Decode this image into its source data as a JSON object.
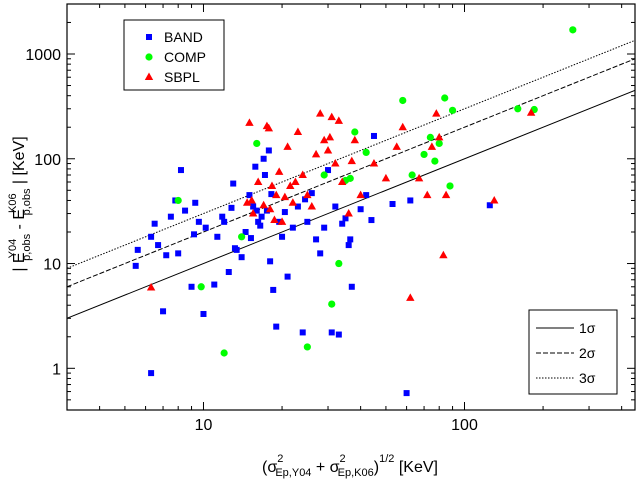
{
  "chart_data": {
    "type": "scatter",
    "xscale": "log",
    "yscale": "log",
    "xlim": [
      3,
      450
    ],
    "ylim": [
      0.4,
      3000
    ],
    "xticks": [
      10,
      100
    ],
    "yticks": [
      1,
      10,
      100,
      1000
    ],
    "xtick_labels": [
      "10",
      "100"
    ],
    "ytick_labels": [
      "1",
      "10",
      "100",
      "1000"
    ],
    "xlabel": {
      "pre": "(σ",
      "sup1": "2",
      "sub1": "Ep,Y04",
      "mid": " + σ",
      "sup2": "2",
      "sub2": "Ep,K06",
      "post": ")",
      "sup3": "1/2",
      "unit": " [KeV]"
    },
    "ylabel": {
      "open": "| E",
      "sup1": "Y04",
      "sub1": "p,obs",
      "mid": " - E",
      "sup2": "K06",
      "sub2": "p,obs",
      "close": " | [KeV]"
    },
    "legend_markers": {
      "position": "top-left",
      "entries": [
        {
          "label": "BAND",
          "marker": "square",
          "color": "#0000ff"
        },
        {
          "label": "COMP",
          "marker": "circle",
          "color": "#00ff00"
        },
        {
          "label": "SBPL",
          "marker": "triangle",
          "color": "#ff0000"
        }
      ]
    },
    "legend_lines": {
      "position": "bottom-right",
      "entries": [
        {
          "label": "1σ",
          "k": 1,
          "dash": "solid"
        },
        {
          "label": "2σ",
          "k": 2,
          "dash": "dashed"
        },
        {
          "label": "3σ",
          "k": 3,
          "dash": "dotted"
        }
      ]
    },
    "reference_lines": [
      {
        "name": "1σ",
        "slope": 1,
        "coefficient": 1
      },
      {
        "name": "2σ",
        "slope": 1,
        "coefficient": 2
      },
      {
        "name": "3σ",
        "slope": 1,
        "coefficient": 3
      }
    ],
    "series": [
      {
        "name": "BAND",
        "marker": "square",
        "color": "#0000ff",
        "points": [
          [
            5.5,
            9.5
          ],
          [
            5.6,
            13.5
          ],
          [
            6.3,
            18
          ],
          [
            6.3,
            0.9
          ],
          [
            6.5,
            24
          ],
          [
            6.7,
            15
          ],
          [
            7,
            3.5
          ],
          [
            7.2,
            12
          ],
          [
            7.5,
            28
          ],
          [
            7.8,
            40
          ],
          [
            8.0,
            12.5
          ],
          [
            8.2,
            78
          ],
          [
            8.5,
            32
          ],
          [
            9.0,
            6
          ],
          [
            9.2,
            19
          ],
          [
            9.3,
            38
          ],
          [
            9.6,
            25
          ],
          [
            10,
            3.3
          ],
          [
            10.2,
            22
          ],
          [
            11,
            6.3
          ],
          [
            11.3,
            18
          ],
          [
            11.8,
            28
          ],
          [
            12,
            25
          ],
          [
            12.5,
            8.3
          ],
          [
            12.8,
            34
          ],
          [
            13,
            58
          ],
          [
            13.2,
            14
          ],
          [
            13.4,
            13.5
          ],
          [
            14,
            11.5
          ],
          [
            14.5,
            20
          ],
          [
            15,
            45
          ],
          [
            15.2,
            17.5
          ],
          [
            15.5,
            35
          ],
          [
            15.8,
            84
          ],
          [
            16,
            32
          ],
          [
            16.2,
            25
          ],
          [
            16.5,
            23
          ],
          [
            16.7,
            28
          ],
          [
            17,
            100
          ],
          [
            17.2,
            70
          ],
          [
            17.5,
            32
          ],
          [
            17.8,
            120
          ],
          [
            18,
            10.5
          ],
          [
            18.2,
            46
          ],
          [
            18.5,
            5.6
          ],
          [
            19,
            2.5
          ],
          [
            19.5,
            25
          ],
          [
            20,
            18
          ],
          [
            20.5,
            31
          ],
          [
            21,
            7.5
          ],
          [
            22,
            22
          ],
          [
            23,
            35
          ],
          [
            24,
            2.2
          ],
          [
            24.5,
            41
          ],
          [
            25,
            25
          ],
          [
            26,
            47
          ],
          [
            27,
            17
          ],
          [
            28,
            12.5
          ],
          [
            29,
            22
          ],
          [
            30,
            78
          ],
          [
            31,
            2.2
          ],
          [
            32,
            35
          ],
          [
            33,
            2.1
          ],
          [
            34,
            24
          ],
          [
            35,
            27
          ],
          [
            36,
            15
          ],
          [
            36.5,
            17
          ],
          [
            37,
            6
          ],
          [
            40,
            33
          ],
          [
            42,
            45
          ],
          [
            44,
            26
          ],
          [
            45,
            165
          ],
          [
            53,
            37
          ],
          [
            60,
            0.58
          ],
          [
            62,
            40
          ],
          [
            125,
            36
          ]
        ]
      },
      {
        "name": "COMP",
        "marker": "circle",
        "color": "#00ff00",
        "points": [
          [
            8.0,
            40
          ],
          [
            9.8,
            6
          ],
          [
            12,
            1.4
          ],
          [
            14,
            18
          ],
          [
            16,
            140
          ],
          [
            25,
            1.6
          ],
          [
            29,
            70
          ],
          [
            31,
            4.1
          ],
          [
            33,
            10
          ],
          [
            35,
            62
          ],
          [
            36.5,
            65
          ],
          [
            38,
            180
          ],
          [
            42,
            115
          ],
          [
            58,
            360
          ],
          [
            63,
            70
          ],
          [
            70,
            110
          ],
          [
            74,
            160
          ],
          [
            77,
            95
          ],
          [
            80,
            140
          ],
          [
            84,
            380
          ],
          [
            88,
            55
          ],
          [
            90,
            290
          ],
          [
            160,
            300
          ],
          [
            185,
            295
          ],
          [
            260,
            1700
          ]
        ]
      },
      {
        "name": "SBPL",
        "marker": "triangle",
        "color": "#ff0000",
        "points": [
          [
            6.3,
            5.9
          ],
          [
            14.7,
            38
          ],
          [
            15.0,
            220
          ],
          [
            15.3,
            40
          ],
          [
            15.5,
            30
          ],
          [
            16.2,
            60
          ],
          [
            17,
            36
          ],
          [
            17.5,
            205
          ],
          [
            17.8,
            195
          ],
          [
            18,
            33
          ],
          [
            18.3,
            55
          ],
          [
            18.7,
            26
          ],
          [
            19,
            45
          ],
          [
            19.5,
            75
          ],
          [
            20,
            25
          ],
          [
            20.5,
            43
          ],
          [
            21,
            130
          ],
          [
            21.5,
            55
          ],
          [
            22,
            38
          ],
          [
            22.5,
            60
          ],
          [
            23,
            180
          ],
          [
            24,
            70
          ],
          [
            25,
            45
          ],
          [
            26,
            35
          ],
          [
            27,
            110
          ],
          [
            28,
            270
          ],
          [
            29,
            150
          ],
          [
            30,
            120
          ],
          [
            30.5,
            160
          ],
          [
            31,
            250
          ],
          [
            32,
            90
          ],
          [
            33,
            230
          ],
          [
            34,
            60
          ],
          [
            36,
            30
          ],
          [
            37,
            95
          ],
          [
            38,
            150
          ],
          [
            40,
            45
          ],
          [
            45,
            90
          ],
          [
            50,
            65
          ],
          [
            55,
            130
          ],
          [
            58,
            200
          ],
          [
            62,
            4.7
          ],
          [
            67,
            65
          ],
          [
            72,
            45
          ],
          [
            75,
            130
          ],
          [
            78,
            270
          ],
          [
            80,
            160
          ],
          [
            83,
            12
          ],
          [
            85,
            45
          ],
          [
            130,
            40
          ],
          [
            180,
            275
          ]
        ]
      }
    ]
  }
}
